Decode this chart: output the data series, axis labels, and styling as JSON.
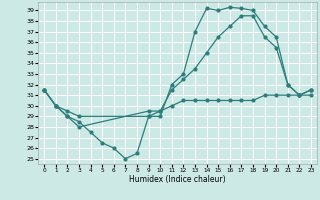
{
  "xlabel": "Humidex (Indice chaleur)",
  "xlim": [
    -0.5,
    23.5
  ],
  "ylim": [
    24.5,
    39.8
  ],
  "yticks": [
    25,
    26,
    27,
    28,
    29,
    30,
    31,
    32,
    33,
    34,
    35,
    36,
    37,
    38,
    39
  ],
  "xticks": [
    0,
    1,
    2,
    3,
    4,
    5,
    6,
    7,
    8,
    9,
    10,
    11,
    12,
    13,
    14,
    15,
    16,
    17,
    18,
    19,
    20,
    21,
    22,
    23
  ],
  "bg_color": "#cce9e5",
  "grid_color": "#ffffff",
  "line_color": "#2d7d7d",
  "line1_x": [
    0,
    1,
    2,
    3,
    4,
    5,
    6,
    7,
    8,
    9,
    10,
    11,
    12,
    13,
    14,
    15,
    16,
    17,
    18,
    19,
    20,
    21,
    22,
    23
  ],
  "line1_y": [
    31.5,
    30.0,
    29.0,
    28.5,
    27.5,
    26.5,
    26.0,
    25.0,
    25.5,
    29.0,
    29.0,
    32.0,
    33.0,
    37.0,
    39.2,
    39.0,
    39.3,
    39.2,
    39.0,
    37.5,
    36.5,
    32.0,
    31.0,
    31.0
  ],
  "line2_x": [
    0,
    1,
    2,
    3,
    9,
    10,
    11,
    12,
    13,
    14,
    15,
    16,
    17,
    18,
    19,
    20,
    21,
    22,
    23
  ],
  "line2_y": [
    31.5,
    30.0,
    29.5,
    29.0,
    29.0,
    29.5,
    31.5,
    32.5,
    33.5,
    35.0,
    36.5,
    37.5,
    38.5,
    38.5,
    36.5,
    35.5,
    32.0,
    31.0,
    31.5
  ],
  "line3_x": [
    0,
    1,
    2,
    3,
    9,
    10,
    11,
    12,
    13,
    14,
    15,
    16,
    17,
    18,
    19,
    20,
    21,
    22,
    23
  ],
  "line3_y": [
    31.5,
    30.0,
    29.0,
    28.0,
    29.5,
    29.5,
    30.0,
    30.5,
    30.5,
    30.5,
    30.5,
    30.5,
    30.5,
    30.5,
    31.0,
    31.0,
    31.0,
    31.0,
    31.5
  ]
}
